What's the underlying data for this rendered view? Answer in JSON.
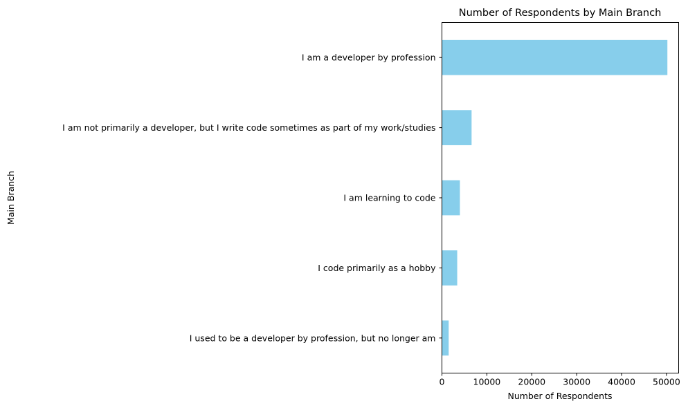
{
  "chart_data": {
    "type": "bar",
    "orientation": "horizontal",
    "title": "Number of Respondents by Main Branch",
    "xlabel": "Number of Respondents",
    "ylabel": "Main Branch",
    "categories": [
      "I am a developer by profession",
      "I am not primarily a developer, but I write code sometimes as part of my work/studies",
      "I am learning to code",
      "I code primarily as a hobby",
      "I used to be a developer by profession, but no longer am"
    ],
    "values": [
      50200,
      6600,
      4000,
      3400,
      1500
    ],
    "xlim": [
      0,
      52710
    ],
    "xticks": [
      0,
      10000,
      20000,
      30000,
      40000,
      50000
    ],
    "xtick_labels": [
      "0",
      "10000",
      "20000",
      "30000",
      "40000",
      "50000"
    ],
    "bar_color": "#87ceeb",
    "grid": false,
    "legend": "none"
  }
}
